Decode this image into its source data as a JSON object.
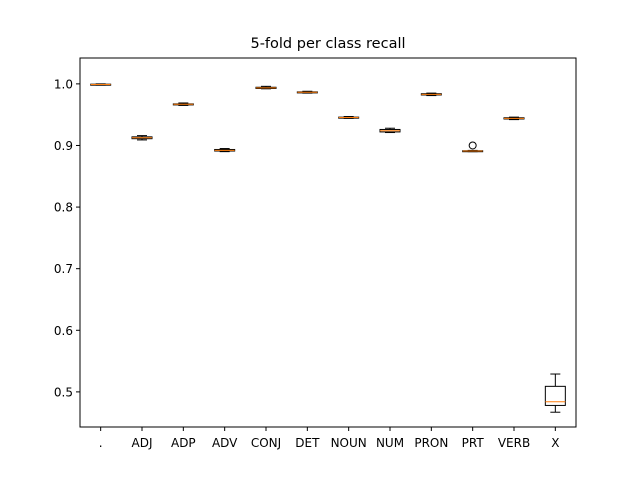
{
  "chart_data": {
    "type": "box",
    "title": "5-fold per class recall",
    "xlabel": "",
    "ylabel": "",
    "ylim": [
      0.443,
      1.042
    ],
    "yticks": [
      0.5,
      0.6,
      0.7,
      0.8,
      0.9,
      1.0
    ],
    "ytick_labels": [
      "0.5",
      "0.6",
      "0.7",
      "0.8",
      "0.9",
      "1.0"
    ],
    "grid": false,
    "colors": {
      "box": "#000000",
      "median": "#ff7f0e",
      "background": "#ffffff"
    },
    "categories": [
      ".",
      "ADJ",
      "ADP",
      "ADV",
      "CONJ",
      "DET",
      "NOUN",
      "NUM",
      "PRON",
      "PRT",
      "VERB",
      "X"
    ],
    "boxes": [
      {
        "label": ".",
        "whislo": 0.998,
        "q1": 0.998,
        "med": 0.999,
        "q3": 0.9995,
        "whishi": 1.0,
        "fliers": []
      },
      {
        "label": "ADJ",
        "whislo": 0.909,
        "q1": 0.911,
        "med": 0.9125,
        "q3": 0.914,
        "whishi": 0.916,
        "fliers": []
      },
      {
        "label": "ADP",
        "whislo": 0.965,
        "q1": 0.966,
        "med": 0.967,
        "q3": 0.9675,
        "whishi": 0.969,
        "fliers": []
      },
      {
        "label": "ADV",
        "whislo": 0.89,
        "q1": 0.891,
        "med": 0.892,
        "q3": 0.8935,
        "whishi": 0.895,
        "fliers": []
      },
      {
        "label": "CONJ",
        "whislo": 0.992,
        "q1": 0.9925,
        "med": 0.9935,
        "q3": 0.9945,
        "whishi": 0.996,
        "fliers": []
      },
      {
        "label": "DET",
        "whislo": 0.985,
        "q1": 0.9855,
        "med": 0.9865,
        "q3": 0.987,
        "whishi": 0.988,
        "fliers": []
      },
      {
        "label": "NOUN",
        "whislo": 0.944,
        "q1": 0.945,
        "med": 0.9455,
        "q3": 0.946,
        "whishi": 0.947,
        "fliers": []
      },
      {
        "label": "NUM",
        "whislo": 0.921,
        "q1": 0.922,
        "med": 0.924,
        "q3": 0.926,
        "whishi": 0.928,
        "fliers": []
      },
      {
        "label": "PRON",
        "whislo": 0.981,
        "q1": 0.982,
        "med": 0.983,
        "q3": 0.984,
        "whishi": 0.985,
        "fliers": []
      },
      {
        "label": "PRT",
        "whislo": 0.89,
        "q1": 0.8905,
        "med": 0.891,
        "q3": 0.8915,
        "whishi": 0.892,
        "fliers": [
          0.9
        ]
      },
      {
        "label": "VERB",
        "whislo": 0.942,
        "q1": 0.943,
        "med": 0.944,
        "q3": 0.945,
        "whishi": 0.946,
        "fliers": []
      },
      {
        "label": "X",
        "whislo": 0.467,
        "q1": 0.478,
        "med": 0.484,
        "q3": 0.509,
        "whishi": 0.529,
        "fliers": []
      }
    ]
  }
}
